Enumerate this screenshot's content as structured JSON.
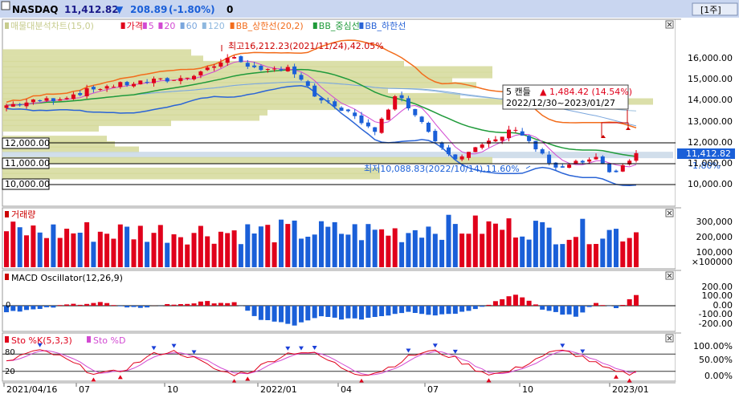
{
  "header": {
    "symbol": "NASDAQ",
    "price": "11,412.82",
    "change_arrow": "▼",
    "change": "208.89",
    "change_pct": "(-1.80%)",
    "extra": "0",
    "period_button": "[1주]",
    "colors": {
      "up": "#e0001b",
      "down": "#1a5fd8",
      "title_bg": "#c9d6f0"
    }
  },
  "price_panel": {
    "legend": [
      {
        "label": "매물대분석차트(15,0)",
        "color": "#c7cc8e"
      },
      {
        "label": "가격",
        "color": "#e0001b"
      },
      {
        "label": "5",
        "color": "#d24ad2"
      },
      {
        "label": "20",
        "color": "#d24ad2"
      },
      {
        "label": "60",
        "color": "#7aa6dd"
      },
      {
        "label": "120",
        "color": "#8fb8de"
      },
      {
        "label": "BB_상한선(20,2)",
        "color": "#f26c1b"
      },
      {
        "label": "BB_중심선",
        "color": "#1f9a3a"
      },
      {
        "label": "BB_하한선",
        "color": "#2a64d6"
      }
    ],
    "axis_labels": [
      "16,000.00",
      "15,000.00",
      "14,000.00",
      "13,000.00",
      "12,000.00",
      "11,000.00",
      "10,000.00"
    ],
    "current_price_tag": "11,412.82",
    "current_pct_tag": "-1.80%",
    "hlines": [
      "12,000.00",
      "11,000.00",
      "10,000.00"
    ],
    "high_note": "최고16,212.23(2021/11/24),42.05%",
    "low_note": "최저10,088.83(2022/10/14),11.60%",
    "tooltip": {
      "line1": "5 캔들",
      "arrow": "▲",
      "line1b": "1,484.42 (14.54%)",
      "line2": "2022/12/30~2023/01/27"
    }
  },
  "volume_panel": {
    "legend": "거래량",
    "axis_labels": [
      "300,000",
      "200,000",
      "100,000",
      "×100000"
    ]
  },
  "macd_panel": {
    "legend": "MACD Oscillator(12,26,9)",
    "zero_label": "0",
    "axis_labels": [
      "200.00",
      "100.00",
      "0.00",
      "-100.00",
      "-200.00"
    ]
  },
  "sto_panel": {
    "legend_k": "Sto %K(5,3,3)",
    "legend_d": "Sto %D",
    "level_high": "80",
    "level_low": "20",
    "axis_labels": [
      "100.00%",
      "50.00%",
      "0.00%"
    ]
  },
  "x_axis": [
    "2021/04/16",
    "07",
    "10",
    "2022/01",
    "04",
    "07",
    "10",
    "2023/01"
  ],
  "chart_data": [
    {
      "type": "line",
      "title": "NASDAQ",
      "x": [
        "2021/04/16",
        "2021/07",
        "2021/10",
        "2022/01",
        "2022/04",
        "2022/07",
        "2022/10",
        "2023/01"
      ],
      "series": [
        {
          "name": "가격",
          "values": [
            13800,
            14700,
            14900,
            14700,
            13500,
            11500,
            10700,
            11413
          ]
        }
      ],
      "ylim": [
        9500,
        16700
      ],
      "grid": true
    },
    {
      "type": "bar",
      "title": "거래량",
      "ylim": [
        0,
        350000
      ]
    },
    {
      "type": "bar",
      "title": "MACD Oscillator(12,26,9)",
      "ylim": [
        -250,
        250
      ]
    },
    {
      "type": "line",
      "series": [
        {
          "name": "Sto %K(5,3,3)"
        },
        {
          "name": "Sto %D"
        }
      ],
      "ylim": [
        0,
        100
      ]
    }
  ]
}
